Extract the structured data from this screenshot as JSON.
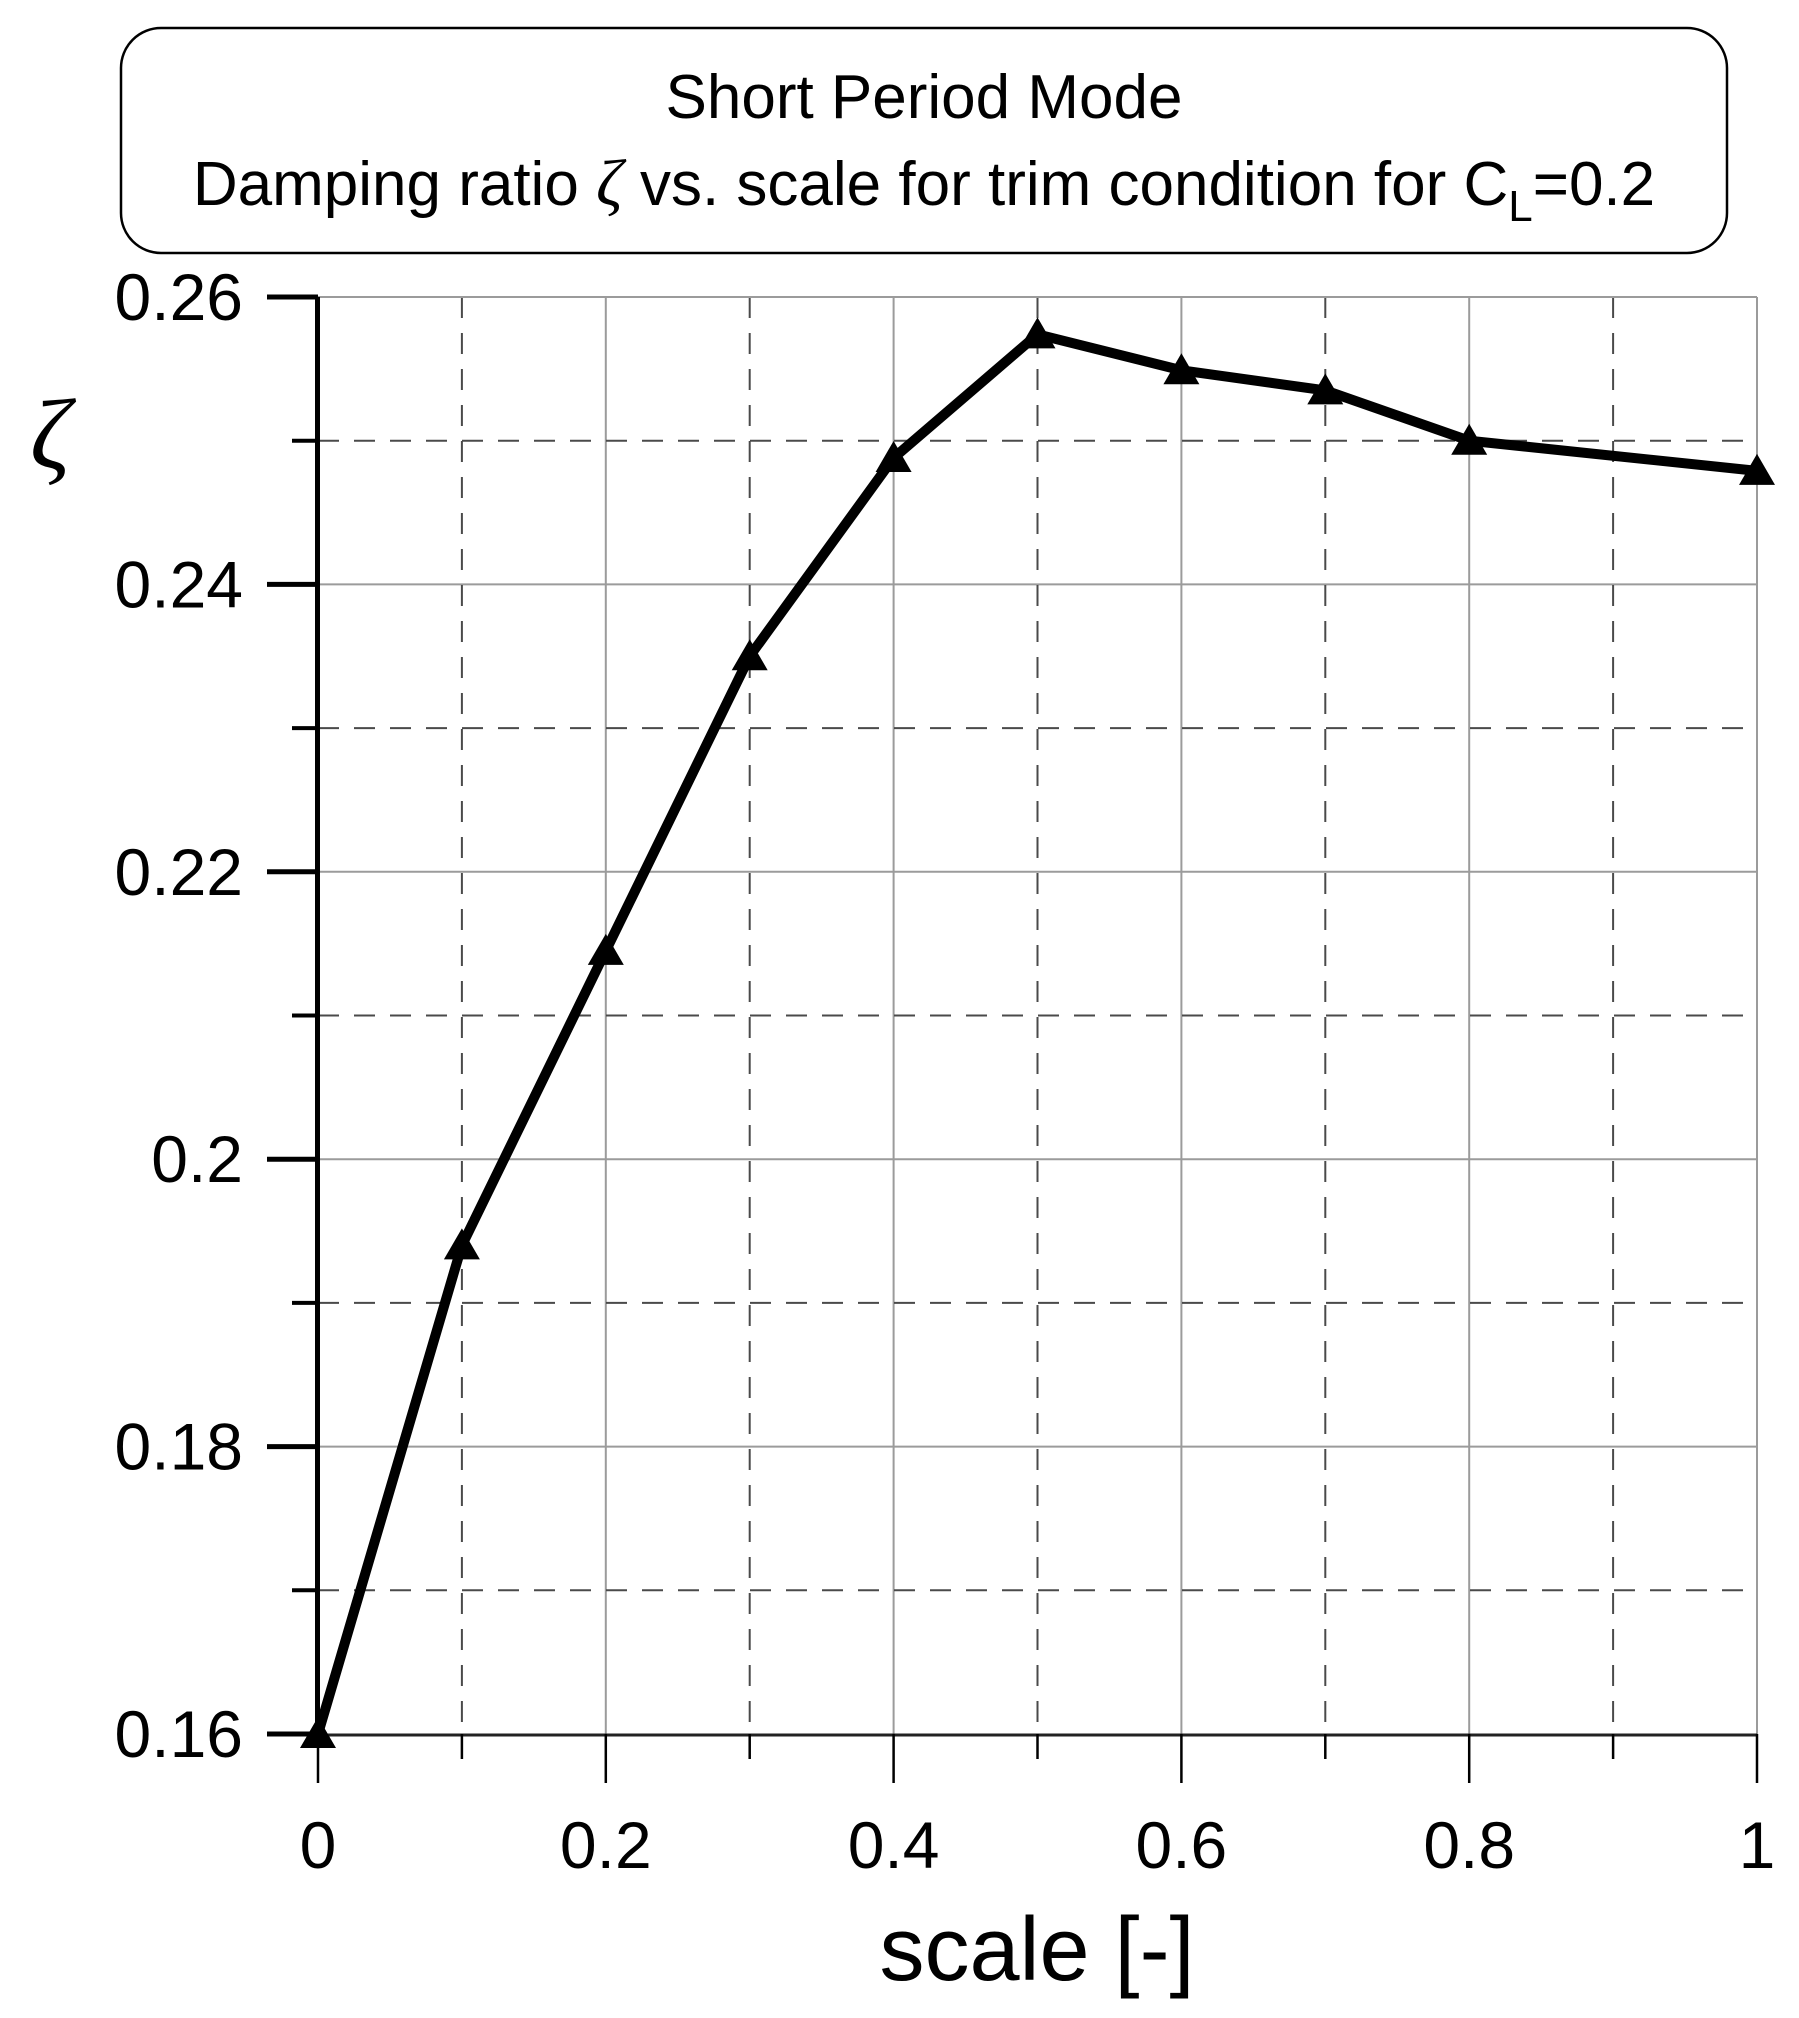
{
  "chart_data": {
    "type": "line",
    "title": "Short Period Mode\nDamping ratio ζ vs. scale for trim condition for C_L=0.2",
    "title_line1": "Short Period Mode",
    "title_line2_parts": {
      "prefix": "Damping ratio ",
      "zeta": "ζ",
      "mid": " vs. scale for trim condition for C",
      "sub": "L",
      "suffix": "=0.2"
    },
    "xlabel": "scale [-]",
    "ylabel_symbol": "ζ",
    "x": [
      0,
      0.1,
      0.2,
      0.3,
      0.4,
      0.5,
      0.6,
      0.7,
      0.8,
      1.0
    ],
    "y": [
      0.16,
      0.194,
      0.2145,
      0.235,
      0.2488,
      0.2574,
      0.2549,
      0.2535,
      0.25,
      0.2479
    ],
    "xlim": [
      0,
      1
    ],
    "ylim": [
      0.16,
      0.26
    ],
    "xticks_major": {
      "values": [
        0,
        0.2,
        0.4,
        0.6,
        0.8,
        1
      ],
      "labels": [
        "0",
        "0.2",
        "0.4",
        "0.6",
        "0.8",
        "1"
      ]
    },
    "xticks_minor": [
      0.1,
      0.3,
      0.5,
      0.7,
      0.9
    ],
    "yticks_major": {
      "values": [
        0.16,
        0.18,
        0.2,
        0.22,
        0.24,
        0.26
      ],
      "labels": [
        "0.16",
        "0.18",
        "0.2",
        "0.22",
        "0.24",
        "0.26"
      ]
    },
    "yticks_minor": [
      0.17,
      0.19,
      0.21,
      0.23,
      0.25
    ],
    "grid": {
      "major_style": "solid",
      "minor_style": "dashed",
      "grid_on": true
    },
    "legend": "none",
    "marker": "triangle-up",
    "colors": {
      "series_line": "#000000",
      "marker": "#000000",
      "grid_major": "#9b9b9b",
      "grid_minor": "#4a4a4a",
      "spine_left": "#000000",
      "spine_bottom": "#222222",
      "text": "#000000",
      "background": "#ffffff",
      "title_box_border": "#000000"
    }
  }
}
